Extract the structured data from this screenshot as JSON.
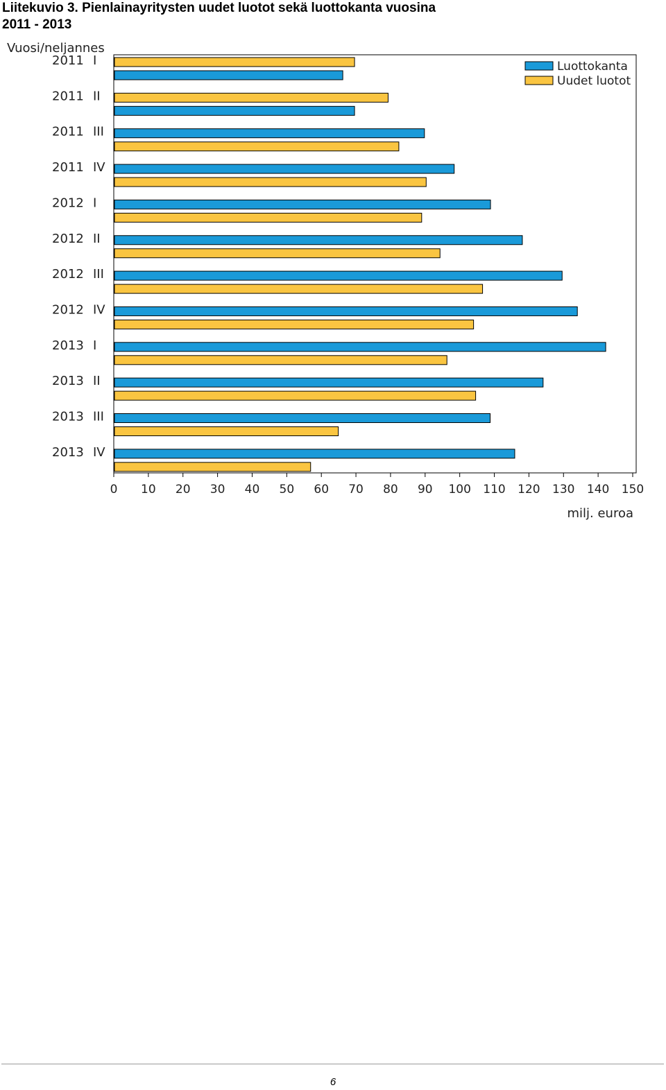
{
  "page": {
    "title_line1": "Liitekuvio 3. Pienlainayritysten uudet luotot sekä luottokanta vuosina",
    "title_line2": "2011 - 2013",
    "page_number": "6"
  },
  "chart_data": {
    "type": "bar",
    "orientation": "horizontal",
    "title": "",
    "ylabel": "Vuosi/neljannes",
    "xlabel": "milj. euroa",
    "categories": [
      "2011 I",
      "2011 II",
      "2011 III",
      "2011 IV",
      "2012 I",
      "2012 II",
      "2012 III",
      "2012 IV",
      "2013 I",
      "2013 II",
      "2013 III",
      "2013 IV"
    ],
    "category_labels": [
      [
        "2011",
        "I"
      ],
      [
        "2011",
        "II"
      ],
      [
        "2011",
        "III"
      ],
      [
        "2011",
        "IV"
      ],
      [
        "2012",
        "I"
      ],
      [
        "2012",
        "II"
      ],
      [
        "2012",
        "III"
      ],
      [
        "2012",
        "IV"
      ],
      [
        "2013",
        "I"
      ],
      [
        "2013",
        "II"
      ],
      [
        "2013",
        "III"
      ],
      [
        "2013",
        "IV"
      ]
    ],
    "series": [
      {
        "name": "Luottokanta",
        "color": "#1A9AD9",
        "values": [
          66.2,
          69.6,
          89.8,
          98.4,
          108.9,
          118.1,
          129.6,
          134.0,
          142.2,
          124.1,
          108.8,
          115.9
        ]
      },
      {
        "name": "Uudet luotot",
        "color": "#FAC541",
        "values": [
          69.6,
          79.3,
          82.4,
          90.3,
          89.0,
          94.3,
          106.6,
          104.0,
          96.3,
          104.6,
          64.9,
          56.9
        ]
      }
    ],
    "bar_order_per_category": [
      [
        "Uudet luotot",
        "Luottokanta"
      ],
      [
        "Uudet luotot",
        "Luottokanta"
      ],
      [
        "Luottokanta",
        "Uudet luotot"
      ],
      [
        "Luottokanta",
        "Uudet luotot"
      ],
      [
        "Luottokanta",
        "Uudet luotot"
      ],
      [
        "Luottokanta",
        "Uudet luotot"
      ],
      [
        "Luottokanta",
        "Uudet luotot"
      ],
      [
        "Luottokanta",
        "Uudet luotot"
      ],
      [
        "Luottokanta",
        "Uudet luotot"
      ],
      [
        "Luottokanta",
        "Uudet luotot"
      ],
      [
        "Luottokanta",
        "Uudet luotot"
      ],
      [
        "Luottokanta",
        "Uudet luotot"
      ]
    ],
    "xlim": [
      0,
      150
    ],
    "xticks": [
      0,
      10,
      20,
      30,
      40,
      50,
      60,
      70,
      80,
      90,
      100,
      110,
      120,
      130,
      140,
      150
    ],
    "grid": false,
    "legend_position": "top-right",
    "bar_outline_color": "#000000"
  }
}
